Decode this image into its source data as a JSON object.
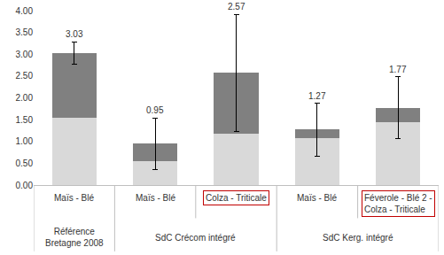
{
  "chart_data": {
    "type": "bar",
    "stacked": true,
    "categories": [
      "Maïs - Blé",
      "Maïs - Blé",
      "Colza - Triticale",
      "Maïs - Blé",
      "Féverole - Blé 2 -\nColza - Triticale"
    ],
    "groups": [
      "Référence\nBretagne 2008",
      "SdC Crécom intégré",
      "SdC Crécom intégré",
      "SdC Kerg. intégré",
      "SdC Kerg. intégré"
    ],
    "highlight": [
      false,
      false,
      true,
      false,
      true
    ],
    "series": [
      {
        "color": "#d9d9d9",
        "values": [
          1.55,
          0.55,
          1.18,
          1.07,
          1.45
        ]
      },
      {
        "color": "#808080",
        "values": [
          1.48,
          0.4,
          1.39,
          0.2,
          0.32
        ],
        "errors": [
          0.25,
          0.59,
          1.34,
          0.6,
          0.71
        ]
      }
    ],
    "totals": [
      3.03,
      0.95,
      2.57,
      1.27,
      1.77
    ],
    "ylim": [
      0,
      4
    ],
    "yticks": [
      {
        "value": 0,
        "label": "0.00"
      },
      {
        "value": 0.5,
        "label": "0.50"
      },
      {
        "value": 1,
        "label": "1.00"
      },
      {
        "value": 1.5,
        "label": "1.50"
      },
      {
        "value": 2,
        "label": "2.00"
      },
      {
        "value": 2.5,
        "label": "2.50"
      },
      {
        "value": 3,
        "label": "3.00"
      },
      {
        "value": 3.5,
        "label": "3.50"
      },
      {
        "value": 4,
        "label": "4.00"
      }
    ],
    "grid": false
  }
}
